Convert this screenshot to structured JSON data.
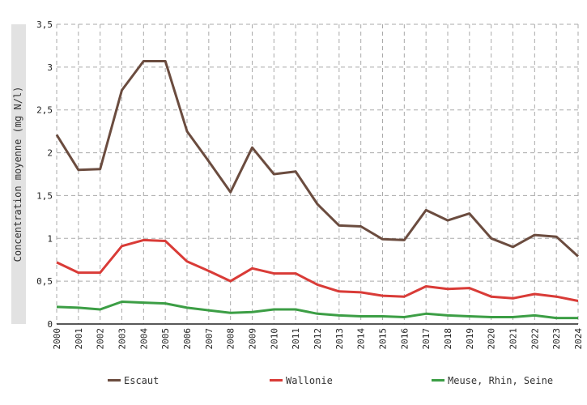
{
  "chart_data": {
    "type": "line",
    "title": "",
    "xlabel": "",
    "ylabel": "Concentration moyenne (mg N/l)",
    "ylim": [
      0,
      3.5
    ],
    "yticks": [
      "0",
      "0,5",
      "1",
      "1,5",
      "2",
      "2,5",
      "3",
      "3,5"
    ],
    "grid": true,
    "legend_position": "bottom",
    "x": [
      "2000",
      "2001",
      "2002",
      "2003",
      "2004",
      "2005",
      "2006",
      "2007",
      "2008",
      "2009",
      "2010",
      "2011",
      "2012",
      "2013",
      "2014",
      "2015",
      "2016",
      "2017",
      "2018",
      "2019",
      "2020",
      "2021",
      "2022",
      "2023",
      "2024"
    ],
    "series": [
      {
        "name": "Escaut",
        "color": "#6b4c3f",
        "values": [
          2.21,
          1.8,
          1.81,
          2.73,
          3.07,
          3.07,
          2.25,
          1.9,
          1.54,
          2.06,
          1.75,
          1.78,
          1.4,
          1.15,
          1.14,
          0.99,
          0.98,
          1.33,
          1.21,
          1.29,
          1.0,
          0.9,
          1.04,
          1.02,
          0.79
        ]
      },
      {
        "name": "Wallonie",
        "color": "#d93b37",
        "values": [
          0.72,
          0.6,
          0.6,
          0.91,
          0.98,
          0.97,
          0.73,
          0.62,
          0.5,
          0.65,
          0.59,
          0.59,
          0.46,
          0.38,
          0.37,
          0.33,
          0.32,
          0.44,
          0.41,
          0.42,
          0.32,
          0.3,
          0.35,
          0.32,
          0.27
        ]
      },
      {
        "name": "Meuse, Rhin, Seine",
        "color": "#3c9e45",
        "values": [
          0.2,
          0.19,
          0.17,
          0.26,
          0.25,
          0.24,
          0.19,
          0.16,
          0.13,
          0.14,
          0.17,
          0.17,
          0.12,
          0.1,
          0.09,
          0.09,
          0.08,
          0.12,
          0.1,
          0.09,
          0.08,
          0.08,
          0.1,
          0.07,
          0.07
        ]
      }
    ]
  }
}
